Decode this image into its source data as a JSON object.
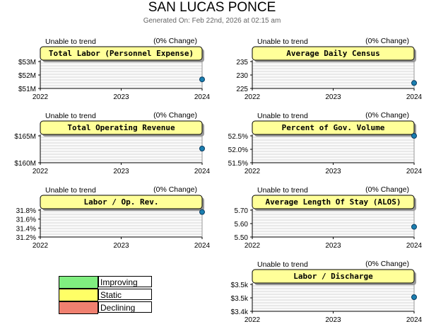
{
  "page": {
    "title": "SAN LUCAS PONCE",
    "subtitle": "Generated On: Feb 22nd, 2026 at 02:15 am"
  },
  "colors": {
    "header_fill": "#ffff99",
    "improving": "#80ee80",
    "static": "#ffff66",
    "declining": "#f08070",
    "point": "#1a7fb0"
  },
  "legend": [
    {
      "label": "Improving",
      "color": "#80ee80"
    },
    {
      "label": "Static",
      "color": "#ffff66"
    },
    {
      "label": "Declining",
      "color": "#f08070"
    }
  ],
  "chart_data": [
    {
      "type": "scatter",
      "title": "Total Labor (Personnel Expense)",
      "trend_text": "Unable to trend",
      "change_text": "(0% Change)",
      "x_ticks": [
        "2022",
        "2023",
        "2024"
      ],
      "y_ticks": [
        "$53M",
        "$52M",
        "$51M"
      ],
      "ylim": [
        51,
        53.5
      ],
      "points": [
        {
          "x": "2024",
          "y": 51.8
        }
      ]
    },
    {
      "type": "scatter",
      "title": "Average Daily Census",
      "trend_text": "Unable to trend",
      "change_text": "(0% Change)",
      "x_ticks": [
        "2022",
        "2023",
        "2024"
      ],
      "y_ticks": [
        "235",
        "230",
        "225"
      ],
      "ylim": [
        225,
        238
      ],
      "points": [
        {
          "x": "2024",
          "y": 227.5
        }
      ]
    },
    {
      "type": "scatter",
      "title": "Total Operating Revenue",
      "trend_text": "Unable to trend",
      "change_text": "(0% Change)",
      "x_ticks": [
        "2022",
        "2023",
        "2024"
      ],
      "y_ticks": [
        "$165M",
        "$160M"
      ],
      "ylim": [
        160,
        167
      ],
      "points": [
        {
          "x": "2024",
          "y": 163.5
        }
      ]
    },
    {
      "type": "scatter",
      "title": "Percent of Gov. Volume",
      "trend_text": "Unable to trend",
      "change_text": "(0% Change)",
      "x_ticks": [
        "2022",
        "2023",
        "2024"
      ],
      "y_ticks": [
        "52.5%",
        "52.0%",
        "51.5%"
      ],
      "ylim": [
        51.5,
        52.5
      ],
      "points": [
        {
          "x": "2024",
          "y": 52.45
        }
      ]
    },
    {
      "type": "scatter",
      "title": "Labor / Op. Rev.",
      "trend_text": "Unable to trend",
      "change_text": "(0% Change)",
      "x_ticks": [
        "2022",
        "2023",
        "2024"
      ],
      "y_ticks": [
        "31.8%",
        "31.6%",
        "31.4%",
        "31.2%"
      ],
      "ylim": [
        31.2,
        31.8
      ],
      "points": [
        {
          "x": "2024",
          "y": 31.73
        }
      ]
    },
    {
      "type": "scatter",
      "title": "Average Length Of Stay (ALOS)",
      "trend_text": "Unable to trend",
      "change_text": "(0% Change)",
      "x_ticks": [
        "2022",
        "2023",
        "2024"
      ],
      "y_ticks": [
        "5.70",
        "5.60",
        "5.50"
      ],
      "ylim": [
        5.5,
        5.75
      ],
      "points": [
        {
          "x": "2024",
          "y": 5.59
        }
      ]
    },
    {
      "type": "scatter",
      "title": "Labor / Discharge",
      "trend_text": "Unable to trend",
      "change_text": "(0% Change)",
      "x_ticks": [
        "2022",
        "2023",
        "2024"
      ],
      "y_ticks": [
        "$3.5k",
        "$3.5k",
        "$3.4k"
      ],
      "ylim": [
        3.4,
        3.56
      ],
      "points": [
        {
          "x": "2024",
          "y": 3.48
        }
      ]
    }
  ]
}
